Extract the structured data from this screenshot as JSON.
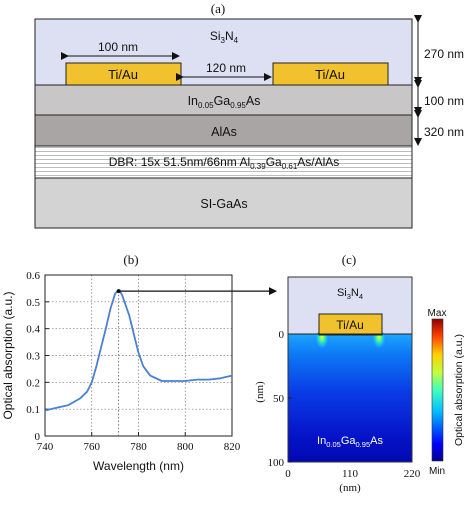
{
  "panel_a": {
    "label": "(a)",
    "top_layer": "Si3N4",
    "contact_left": "Ti/Au",
    "contact_right": "Ti/Au",
    "dim_width": "100 nm",
    "dim_gap": "120 nm",
    "thickness_top": "270 nm",
    "ingaas": {
      "prefix": "In",
      "s1": "0.05",
      "mid": "Ga",
      "s2": "0.95",
      "suffix": "As"
    },
    "thickness_ingaas": "100 nm",
    "alas_label": "AlAs",
    "thickness_alas": "320 nm",
    "dbr": {
      "text": "DBR: 15x  51.5nm/66nm Al",
      "s1": "0.39",
      "mid": "Ga",
      "s2": "0.61",
      "suffix": "As/AlAs"
    },
    "substrate_label": "SI-GaAs",
    "colors": {
      "si3n4": "#dde0f3",
      "contact": "#f2c12e",
      "ingaas": "#c8c6c6",
      "alas": "#a9a5a5",
      "substrate": "#d4d3d3",
      "dbr_stripes": "#bdbdbd"
    }
  },
  "panel_b_label": "(b)",
  "panel_c": {
    "label": "(c)",
    "top_layer": "Si3N4",
    "contact": "Ti/Au",
    "semiconductor": {
      "prefix": "In",
      "s1": "0.05",
      "mid": "Ga",
      "s2": "0.95",
      "suffix": "As"
    },
    "y_ticks": [
      "0",
      "50",
      "100"
    ],
    "x_ticks": [
      "0",
      "110",
      "220"
    ],
    "ylabel": "(nm)",
    "xlabel": "(nm)",
    "colorbar_max": "Max",
    "colorbar_min": "Min",
    "colorbar_label": "Optical absorption (a.u.)"
  },
  "chart_data": {
    "type": "line",
    "xlabel": "Wavelength (nm)",
    "ylabel": "Optical absorption (a.u.)",
    "xlim": [
      740,
      820
    ],
    "ylim": [
      0,
      0.6
    ],
    "x_ticks": [
      "740",
      "760",
      "780",
      "800",
      "820"
    ],
    "y_ticks": [
      "0",
      "0.1",
      "0.2",
      "0.3",
      "0.4",
      "0.5",
      "0.6"
    ],
    "grid": "dotted",
    "series": [
      {
        "color": "#4a7fd4",
        "x": [
          740,
          745,
          750,
          755,
          758,
          760,
          762,
          764,
          766,
          768,
          770,
          771,
          772,
          773,
          774,
          776,
          778,
          780,
          782,
          785,
          790,
          795,
          800,
          805,
          810,
          815,
          820
        ],
        "y": [
          0.095,
          0.105,
          0.115,
          0.14,
          0.165,
          0.2,
          0.26,
          0.33,
          0.4,
          0.475,
          0.53,
          0.54,
          0.54,
          0.525,
          0.5,
          0.45,
          0.38,
          0.31,
          0.26,
          0.225,
          0.205,
          0.205,
          0.205,
          0.21,
          0.21,
          0.215,
          0.225
        ]
      }
    ],
    "peak_marker": {
      "x": 771.5,
      "y": 0.54
    }
  }
}
